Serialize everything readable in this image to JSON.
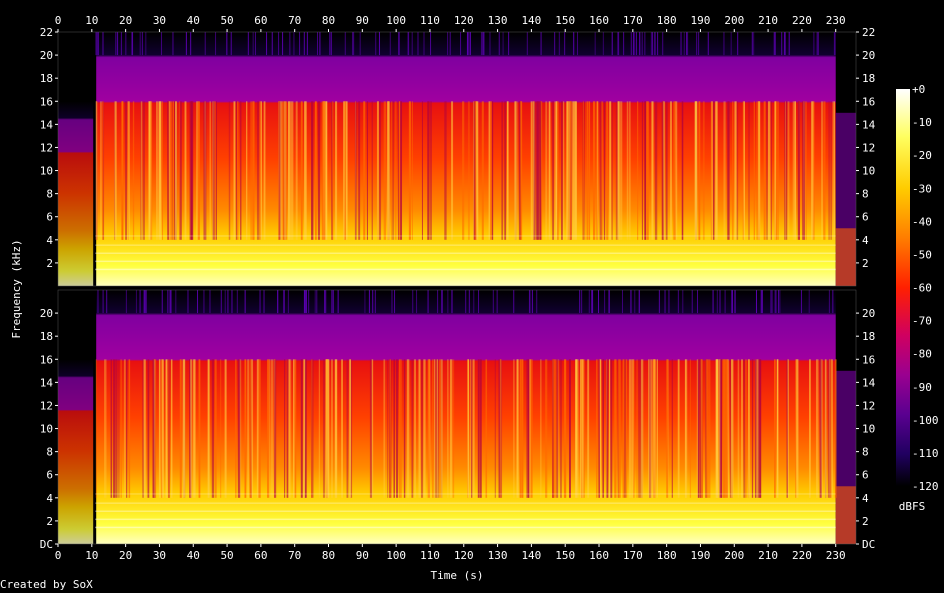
{
  "chart_data": {
    "type": "heatmap",
    "description_of_mark": "spectrogram",
    "xlabel": "Time (s)",
    "ylabel": "Frequency (kHz)",
    "xlim": [
      0,
      236
    ],
    "ylim": [
      0,
      22
    ],
    "x_ticks": [
      "0",
      "10",
      "20",
      "30",
      "40",
      "50",
      "60",
      "70",
      "80",
      "90",
      "100",
      "110",
      "120",
      "130",
      "140",
      "150",
      "160",
      "170",
      "180",
      "190",
      "200",
      "210",
      "220",
      "230"
    ],
    "y_ticks_upper": [
      "2",
      "4",
      "6",
      "8",
      "10",
      "12",
      "14",
      "16",
      "18",
      "20",
      "22"
    ],
    "y_ticks_lower": [
      "DC",
      "2",
      "4",
      "6",
      "8",
      "10",
      "12",
      "14",
      "16",
      "18",
      "20"
    ],
    "channels": 2,
    "colorbar": {
      "label": "dBFS",
      "ticks": [
        "+0",
        "-10",
        "-20",
        "-30",
        "-40",
        "-50",
        "-60",
        "-70",
        "-80",
        "-90",
        "-100",
        "-110",
        "-120"
      ],
      "range": [
        -120,
        0
      ]
    },
    "estimated_content": {
      "silence_start_s": 11,
      "music_end_s": 230,
      "lowpass_cutoff_khz": 16,
      "sparse_upper_band_khz": [
        16,
        20
      ]
    }
  },
  "footer": {
    "credit": "Created by SoX"
  },
  "colors": {
    "background": "#000000",
    "text": "#ffffff"
  }
}
